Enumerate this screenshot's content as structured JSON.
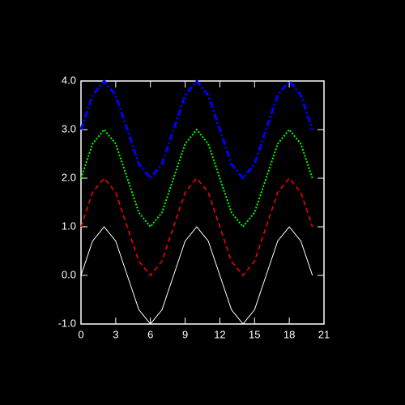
{
  "chart_data": {
    "type": "line",
    "x": [
      0,
      1,
      2,
      3,
      4,
      5,
      6,
      7,
      8,
      9,
      10,
      11,
      12,
      13,
      14,
      15,
      16,
      17,
      18,
      19,
      20
    ],
    "series": [
      {
        "color": "#ffffff",
        "linestyle": "solid",
        "values": [
          0,
          0.707,
          1,
          0.707,
          0,
          -0.707,
          -1,
          -0.707,
          0,
          0.707,
          1,
          0.707,
          0,
          -0.707,
          -1,
          -0.707,
          0,
          0.707,
          1,
          0.707,
          0
        ]
      },
      {
        "color": "#ff0000",
        "linestyle": "dashed",
        "values": [
          1,
          1.707,
          2,
          1.707,
          1,
          0.293,
          0,
          0.293,
          1,
          1.707,
          2,
          1.707,
          1,
          0.293,
          0,
          0.293,
          1,
          1.707,
          2,
          1.707,
          1
        ]
      },
      {
        "color": "#00ff00",
        "linestyle": "dotted",
        "values": [
          2,
          2.707,
          3,
          2.707,
          2,
          1.293,
          1,
          1.293,
          2,
          2.707,
          3,
          2.707,
          2,
          1.293,
          1,
          1.293,
          2,
          2.707,
          3,
          2.707,
          2
        ]
      },
      {
        "color": "#0000ff",
        "linestyle": "dashdot",
        "values": [
          3,
          3.707,
          4,
          3.707,
          3,
          2.293,
          2,
          2.293,
          3,
          3.707,
          4,
          3.707,
          3,
          2.293,
          2,
          2.293,
          3,
          3.707,
          4,
          3.707,
          3
        ]
      }
    ],
    "xlim": [
      0,
      21
    ],
    "xticks": [
      0,
      3,
      6,
      9,
      12,
      15,
      18,
      21
    ],
    "ylim": [
      -1,
      4
    ],
    "yticks": [
      {
        "value": -1,
        "label": "-1.0"
      },
      {
        "value": 0,
        "label": "0.0"
      },
      {
        "value": 1,
        "label": "1.0"
      },
      {
        "value": 2,
        "label": "2.0"
      },
      {
        "value": 3,
        "label": "3.0"
      },
      {
        "value": 4,
        "label": "4.0"
      }
    ]
  }
}
